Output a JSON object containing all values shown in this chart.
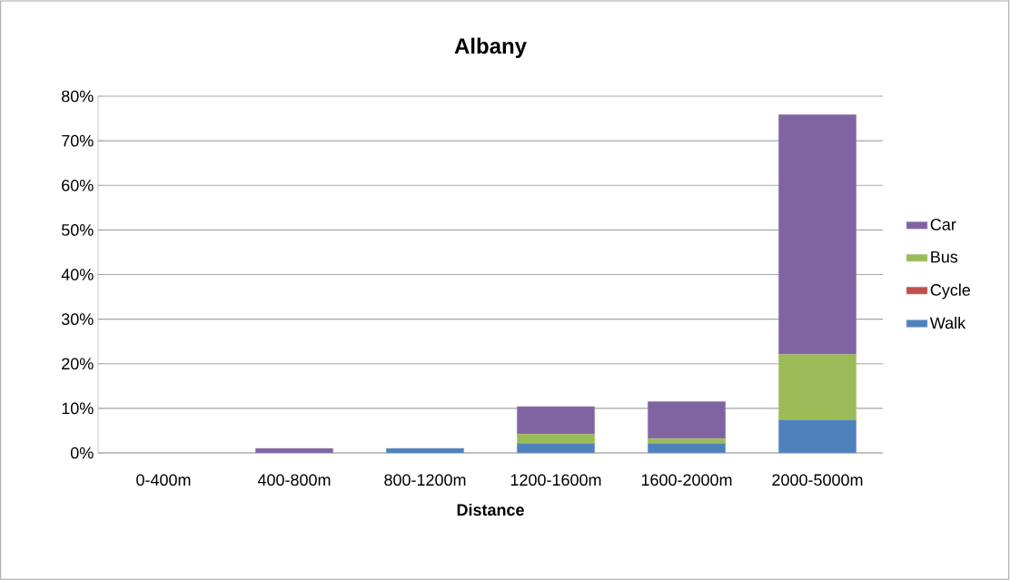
{
  "chart_data": {
    "type": "bar",
    "title": "Albany",
    "xlabel": "Distance",
    "stacked": true,
    "grid": "y",
    "legend": "right",
    "categories": [
      "0-400m",
      "400-800m",
      "800-1200m",
      "1200-1600m",
      "1600-2000m",
      "2000-5000m"
    ],
    "ylim": [
      0,
      80
    ],
    "yticks": [
      {
        "value": 0,
        "label": "0%"
      },
      {
        "value": 10,
        "label": "10%"
      },
      {
        "value": 20,
        "label": "20%"
      },
      {
        "value": 30,
        "label": "30%"
      },
      {
        "value": 40,
        "label": "40%"
      },
      {
        "value": 50,
        "label": "50%"
      },
      {
        "value": 60,
        "label": "60%"
      },
      {
        "value": 70,
        "label": "70%"
      },
      {
        "value": 80,
        "label": "80%"
      }
    ],
    "series": [
      {
        "name": "Walk",
        "color": "#4f81bd",
        "values": [
          0,
          0,
          1.0,
          2.1,
          2.1,
          7.4
        ]
      },
      {
        "name": "Cycle",
        "color": "#c0504d",
        "values": [
          0,
          0,
          0,
          0,
          0,
          0
        ]
      },
      {
        "name": "Bus",
        "color": "#9bbb59",
        "values": [
          0,
          0,
          0,
          2.1,
          1.1,
          14.7
        ]
      },
      {
        "name": "Car",
        "color": "#8064a2",
        "values": [
          0,
          1.0,
          0,
          6.2,
          8.3,
          53.8
        ]
      }
    ]
  }
}
